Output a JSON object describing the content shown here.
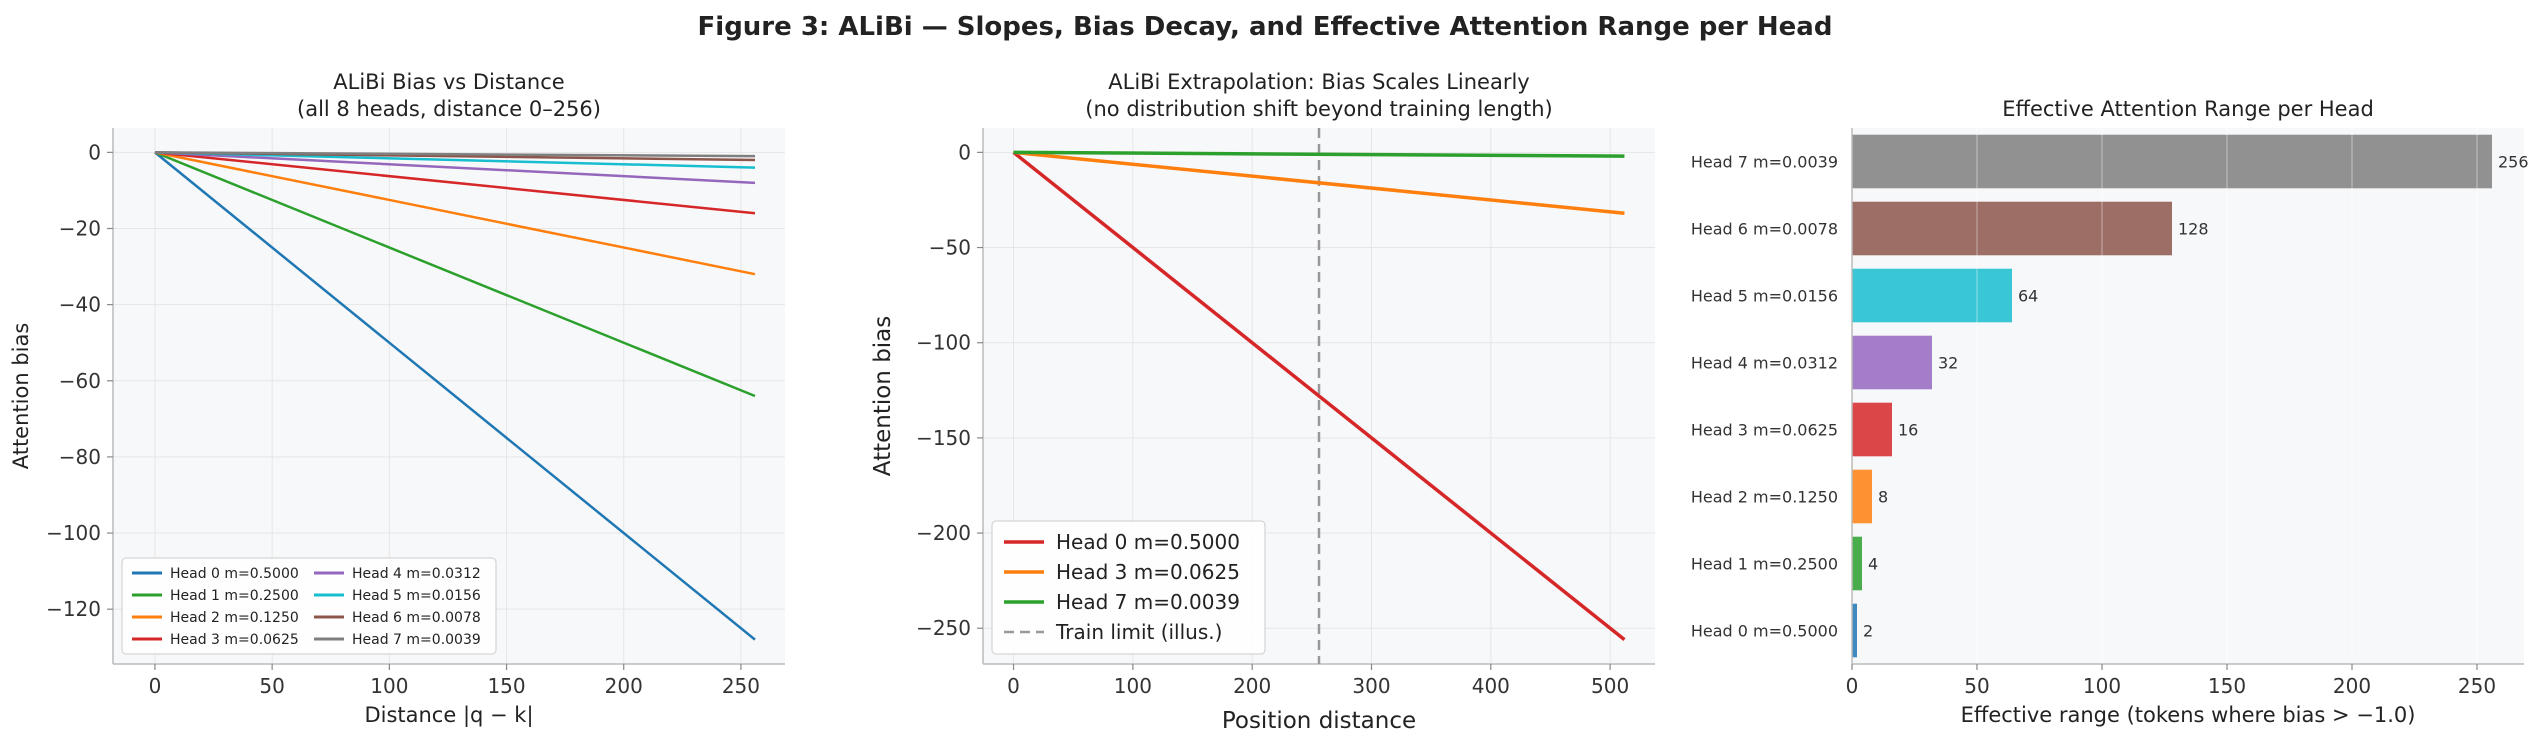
{
  "figure": {
    "title": "Figure 3: ALiBi — Slopes, Bias Decay, and Effective Attention Range per Head"
  },
  "chart_data": [
    {
      "type": "line",
      "title": "ALiBi Bias vs Distance",
      "subtitle": "(all 8 heads, distance 0–256)",
      "xlabel": "Distance |q − k|",
      "ylabel": "Attention bias",
      "xlim": [
        -17.9,
        268.8
      ],
      "ylim": [
        -134.4,
        6.4
      ],
      "xticks": [
        0,
        50,
        100,
        150,
        200,
        250
      ],
      "yticks": [
        0,
        -20,
        -40,
        -60,
        -80,
        -100,
        -120
      ],
      "grid": true,
      "legend": "lower-left",
      "legend_columns": 2,
      "x": [
        0,
        256
      ],
      "series": [
        {
          "name": "Head 0  m=0.5000",
          "color": "#1f77b4",
          "values": [
            0,
            -128
          ]
        },
        {
          "name": "Head 1  m=0.2500",
          "color": "#2ca02c",
          "values": [
            0,
            -64
          ]
        },
        {
          "name": "Head 2  m=0.1250",
          "color": "#ff7f0e",
          "values": [
            0,
            -32
          ]
        },
        {
          "name": "Head 3  m=0.0625",
          "color": "#d62728",
          "values": [
            0,
            -16
          ]
        },
        {
          "name": "Head 4  m=0.0312",
          "color": "#9467bd",
          "values": [
            0,
            -8
          ]
        },
        {
          "name": "Head 5  m=0.0156",
          "color": "#17becf",
          "values": [
            0,
            -4
          ]
        },
        {
          "name": "Head 6  m=0.0078",
          "color": "#8c564b",
          "values": [
            0,
            -2
          ]
        },
        {
          "name": "Head 7  m=0.0039",
          "color": "#7f7f7f",
          "values": [
            0,
            -1
          ]
        }
      ]
    },
    {
      "type": "line",
      "title": "ALiBi Extrapolation: Bias Scales Linearly",
      "subtitle": "(no distribution shift beyond training length)",
      "xlabel": "Position distance",
      "ylabel": "Attention bias",
      "xlim": [
        -25.6,
        537.6
      ],
      "ylim": [
        -268.8,
        12.8
      ],
      "xticks": [
        0,
        100,
        200,
        300,
        400,
        500
      ],
      "yticks": [
        0,
        -50,
        -100,
        -150,
        -200,
        -250
      ],
      "grid": true,
      "legend": "lower-left",
      "x": [
        0,
        512
      ],
      "series": [
        {
          "name": "Head 0  m=0.5000",
          "color": "#d62728",
          "values": [
            0,
            -256
          ]
        },
        {
          "name": "Head 3  m=0.0625",
          "color": "#ff7f0e",
          "values": [
            0,
            -32
          ]
        },
        {
          "name": "Head 7  m=0.0039",
          "color": "#2ca02c",
          "values": [
            0,
            -2
          ]
        }
      ],
      "vline": {
        "x": 256,
        "name": "Train limit (illus.)",
        "color": "#999999"
      }
    },
    {
      "type": "bar",
      "orientation": "horizontal",
      "title": "Effective Attention Range per Head",
      "xlabel": "Effective range (tokens where bias > −1.0)",
      "xlim": [
        0,
        268.8
      ],
      "xticks": [
        0,
        50,
        100,
        150,
        200,
        250
      ],
      "grid": true,
      "categories": [
        "Head 0  m=0.5000",
        "Head 1  m=0.2500",
        "Head 2  m=0.1250",
        "Head 3  m=0.0625",
        "Head 4  m=0.0312",
        "Head 5  m=0.0156",
        "Head 6  m=0.0078",
        "Head 7  m=0.0039"
      ],
      "values": [
        2,
        4,
        8,
        16,
        32,
        64,
        128,
        256
      ],
      "colors": [
        "#1f77b4",
        "#2ca02c",
        "#ff7f0e",
        "#d62728",
        "#9467bd",
        "#17becf",
        "#8c564b",
        "#7f7f7f"
      ]
    }
  ]
}
